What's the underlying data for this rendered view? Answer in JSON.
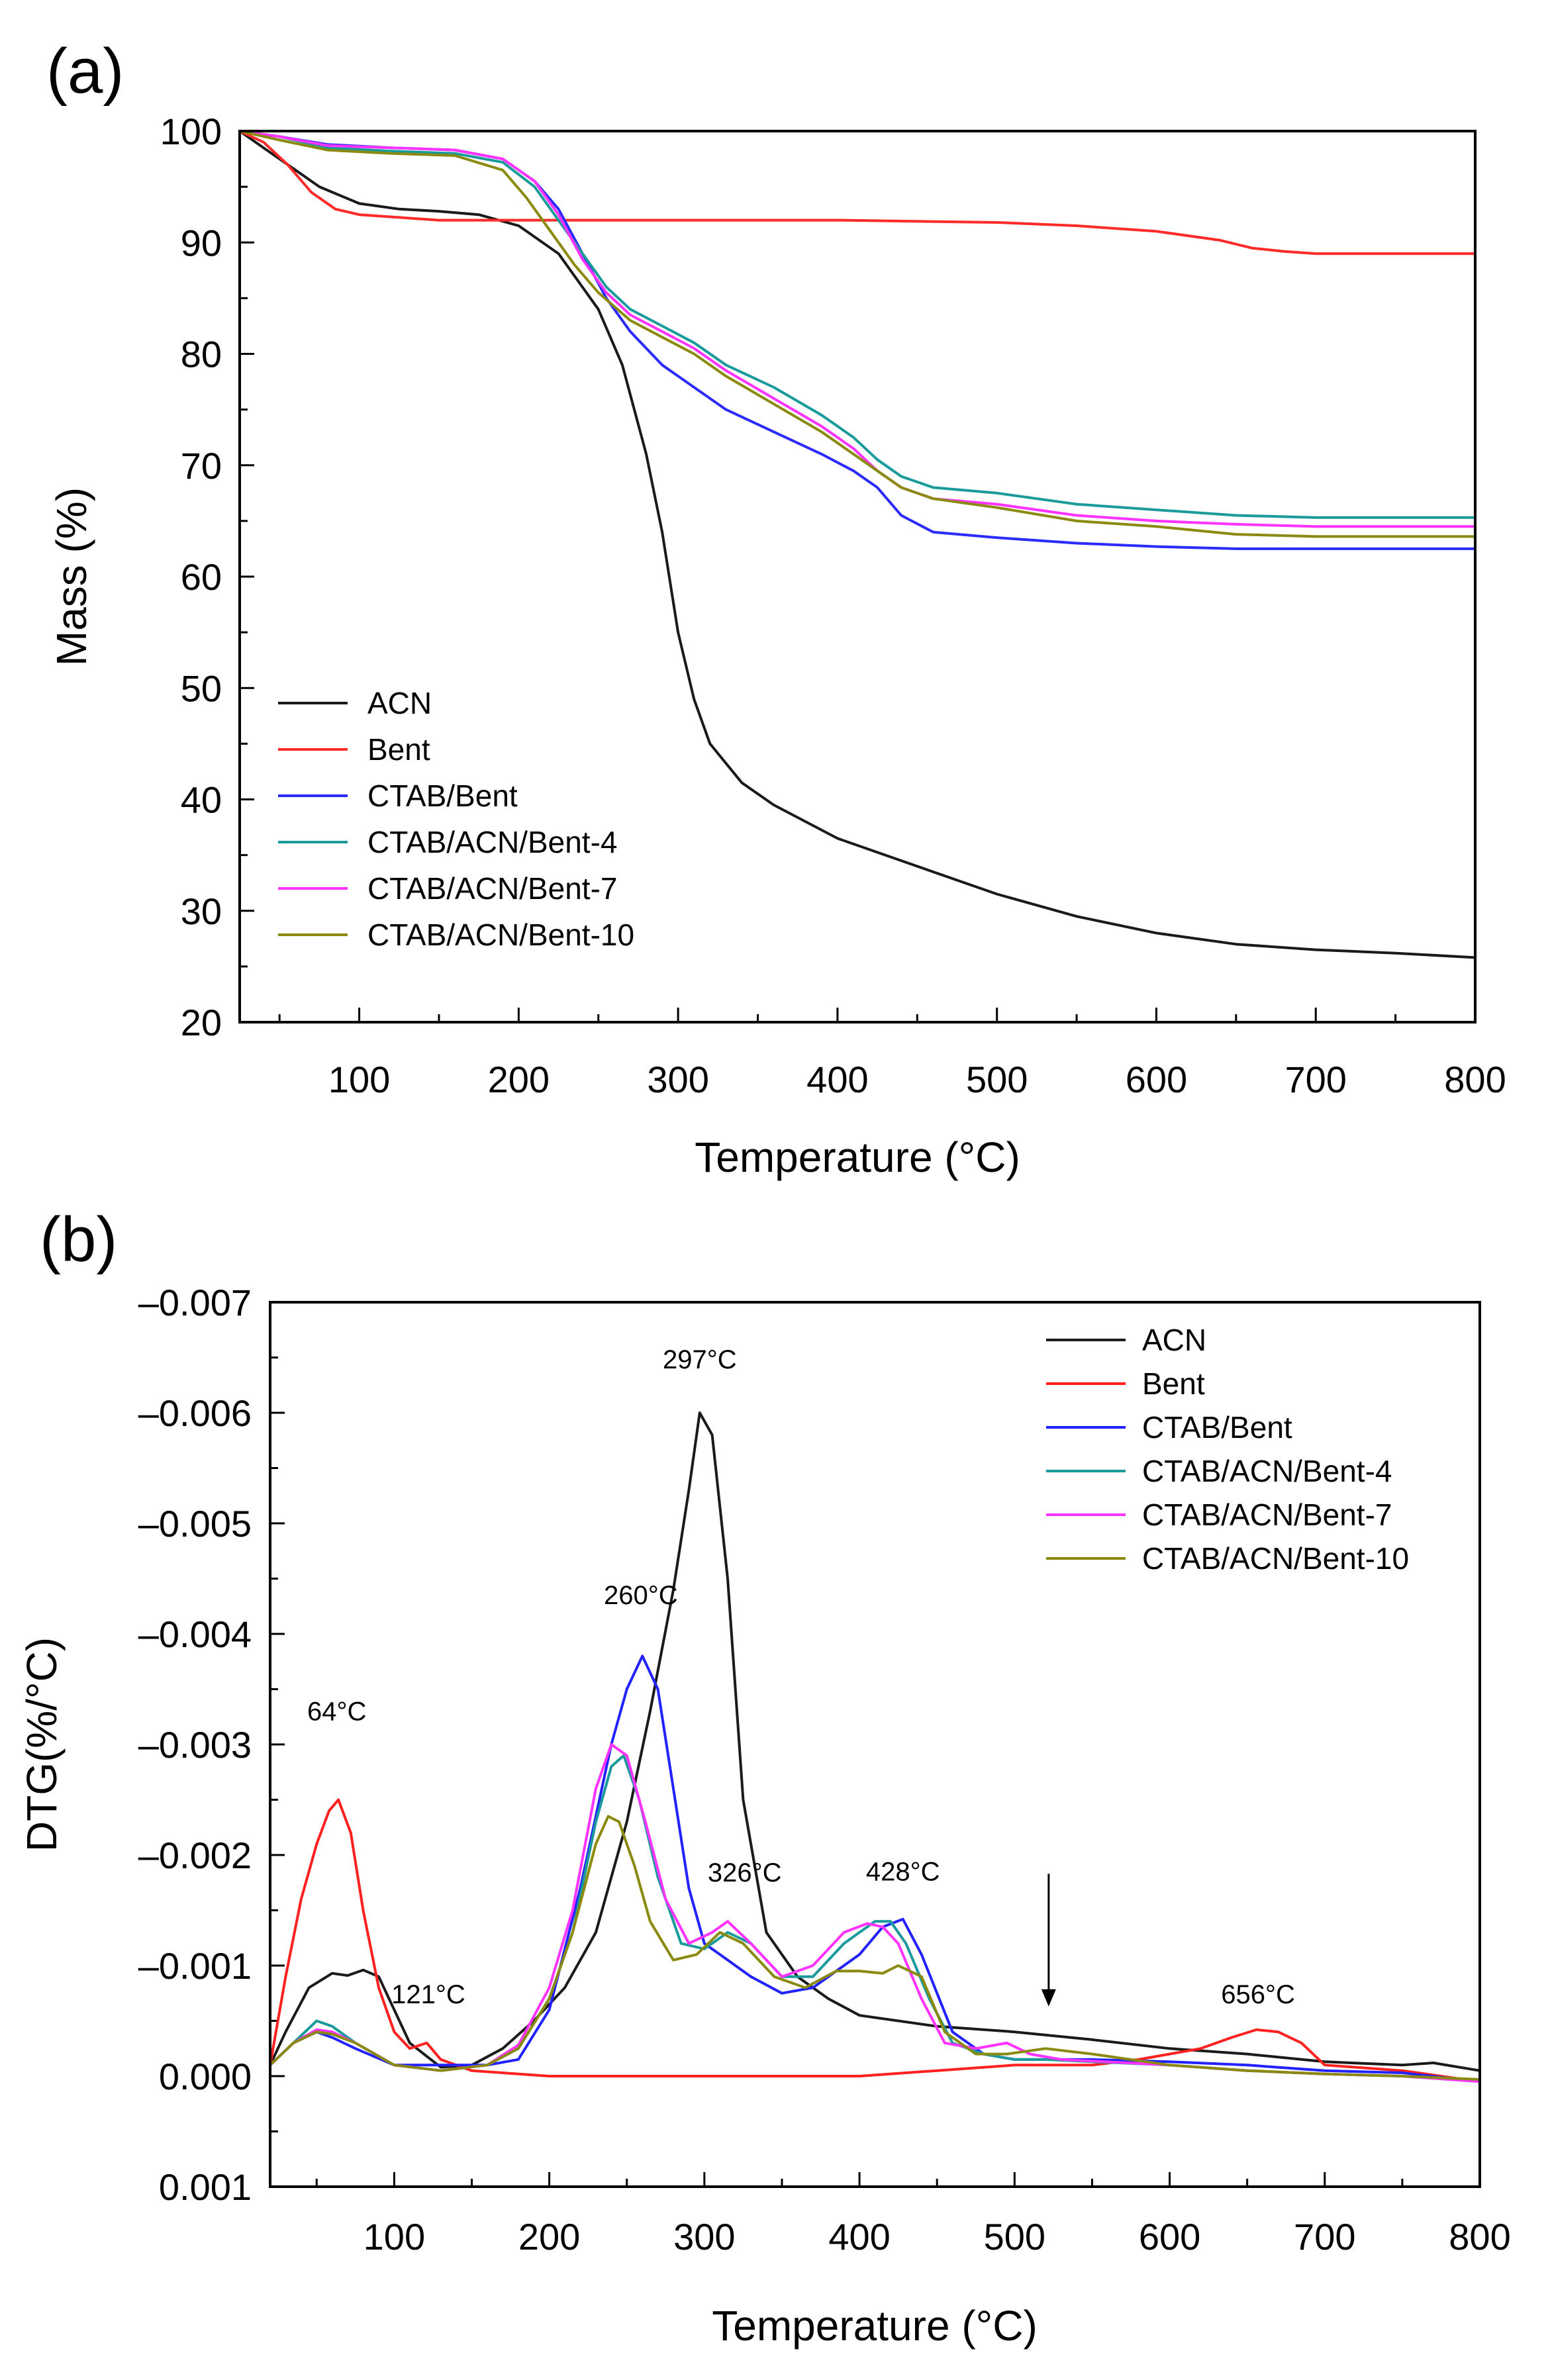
{
  "chart_data": [
    {
      "id": "a",
      "type": "line",
      "panel_label": "(a)",
      "xlabel": "Temperature (°C)",
      "ylabel": "Mass (%)",
      "xlim": [
        25,
        800
      ],
      "ylim": [
        20,
        100
      ],
      "xticks": [
        100,
        200,
        300,
        400,
        500,
        600,
        700,
        800
      ],
      "yticks": [
        20,
        30,
        40,
        50,
        60,
        70,
        80,
        90,
        100
      ],
      "xtick_labels": [
        "100",
        "200",
        "300",
        "400",
        "500",
        "600",
        "700",
        "800"
      ],
      "ytick_labels": [
        "20",
        "30",
        "40",
        "50",
        "60",
        "70",
        "80",
        "90",
        "100"
      ],
      "legend_position": "lower-left",
      "series": [
        {
          "name": "ACN",
          "color": "#1a1a1a",
          "x": [
            25,
            50,
            75,
            100,
            125,
            150,
            175,
            200,
            225,
            250,
            265,
            280,
            290,
            300,
            310,
            320,
            340,
            360,
            400,
            450,
            500,
            550,
            600,
            650,
            700,
            750,
            800
          ],
          "y": [
            100,
            97.5,
            95,
            93.5,
            93,
            92.8,
            92.5,
            91.5,
            89,
            84,
            79,
            71,
            64,
            55,
            49,
            45,
            41.5,
            39.5,
            36.5,
            34,
            31.5,
            29.5,
            28,
            27,
            26.5,
            26.2,
            25.8
          ]
        },
        {
          "name": "Bent",
          "color": "#ff2a2a",
          "x": [
            25,
            40,
            55,
            70,
            85,
            100,
            150,
            200,
            300,
            400,
            500,
            550,
            600,
            640,
            660,
            680,
            700,
            750,
            800
          ],
          "y": [
            100,
            99,
            97,
            94.5,
            93,
            92.5,
            92,
            92,
            92,
            92,
            91.8,
            91.5,
            91,
            90.2,
            89.5,
            89.2,
            89,
            89,
            89
          ]
        },
        {
          "name": "CTAB/Bent",
          "color": "#2b2bff",
          "x": [
            25,
            50,
            80,
            120,
            160,
            190,
            210,
            225,
            240,
            255,
            270,
            290,
            310,
            330,
            360,
            390,
            410,
            425,
            440,
            460,
            500,
            550,
            600,
            650,
            700,
            800
          ],
          "y": [
            100,
            99.5,
            98.8,
            98.5,
            98.3,
            97.5,
            95.5,
            93,
            89,
            85,
            82,
            79,
            77,
            75,
            73,
            71,
            69.5,
            68,
            65.5,
            64,
            63.5,
            63,
            62.7,
            62.5,
            62.5,
            62.5
          ]
        },
        {
          "name": "CTAB/ACN/Bent-4",
          "color": "#1a9a9a",
          "x": [
            25,
            50,
            80,
            120,
            160,
            190,
            210,
            225,
            240,
            255,
            270,
            290,
            310,
            330,
            360,
            390,
            410,
            425,
            440,
            460,
            500,
            550,
            600,
            650,
            700,
            800
          ],
          "y": [
            100,
            99.5,
            98.5,
            98.2,
            98,
            97.2,
            95,
            92,
            89,
            86,
            84,
            82.5,
            81,
            79,
            77,
            74.5,
            72.5,
            70.5,
            69,
            68,
            67.5,
            66.5,
            66,
            65.5,
            65.3,
            65.3
          ]
        },
        {
          "name": "CTAB/ACN/Bent-7",
          "color": "#ff33ff",
          "x": [
            25,
            50,
            80,
            120,
            160,
            190,
            210,
            225,
            240,
            255,
            270,
            290,
            310,
            330,
            360,
            390,
            410,
            425,
            440,
            460,
            500,
            550,
            600,
            650,
            700,
            800
          ],
          "y": [
            100,
            99.5,
            98.7,
            98.5,
            98.3,
            97.5,
            95.5,
            92.5,
            88.5,
            85.5,
            83.5,
            82,
            80.5,
            78.5,
            76,
            73.5,
            71.5,
            69.5,
            68,
            67,
            66.5,
            65.5,
            65,
            64.7,
            64.5,
            64.5
          ]
        },
        {
          "name": "CTAB/ACN/Bent-10",
          "color": "#8a8a10",
          "x": [
            25,
            50,
            80,
            120,
            160,
            190,
            205,
            220,
            235,
            250,
            270,
            290,
            310,
            330,
            360,
            390,
            410,
            425,
            440,
            460,
            500,
            550,
            600,
            650,
            700,
            800
          ],
          "y": [
            100,
            99.2,
            98.3,
            98,
            97.8,
            96.5,
            94,
            91,
            88,
            85.5,
            83,
            81.5,
            80,
            78,
            75.5,
            73,
            71,
            69.5,
            68,
            67,
            66.2,
            65,
            64.5,
            63.8,
            63.6,
            63.6
          ]
        }
      ]
    },
    {
      "id": "b",
      "type": "line",
      "panel_label": "(b)",
      "xlabel": "Temperature (°C)",
      "ylabel": "DTG(%/°C)",
      "xlim": [
        20,
        800
      ],
      "ylim": [
        0.001,
        -0.007
      ],
      "xticks": [
        100,
        200,
        300,
        400,
        500,
        600,
        700,
        800
      ],
      "yticks": [
        -0.007,
        -0.006,
        -0.005,
        -0.004,
        -0.003,
        -0.002,
        -0.001,
        0.0,
        0.001
      ],
      "xtick_labels": [
        "100",
        "200",
        "300",
        "400",
        "500",
        "600",
        "700",
        "800"
      ],
      "ytick_labels": [
        "–0.007",
        "–0.006",
        "–0.005",
        "–0.004",
        "–0.003",
        "–0.002",
        "–0.001",
        "0.000",
        "0.001"
      ],
      "legend_position": "top-right",
      "annotations": [
        {
          "text": "297°C",
          "x": 297,
          "y": -0.0064
        },
        {
          "text": "260°C",
          "x": 259,
          "y": -0.00427
        },
        {
          "text": "64°C",
          "x": 63,
          "y": -0.00322
        },
        {
          "text": "121°C",
          "x": 122,
          "y": -0.00066
        },
        {
          "text": "326°C",
          "x": 326,
          "y": -0.00176
        },
        {
          "text": "428°C",
          "x": 428,
          "y": -0.00177
        },
        {
          "text": "656°C",
          "x": 657,
          "y": -0.00066
        }
      ],
      "arrow": {
        "x": 522,
        "y_from": -0.00183,
        "y_to": -0.00063
      },
      "series": [
        {
          "name": "ACN",
          "color": "#1a1a1a",
          "x": [
            20,
            30,
            45,
            60,
            70,
            80,
            90,
            100,
            110,
            130,
            150,
            170,
            190,
            210,
            230,
            250,
            265,
            280,
            290,
            297,
            305,
            315,
            325,
            340,
            360,
            380,
            400,
            450,
            500,
            550,
            600,
            650,
            700,
            750,
            770,
            800
          ],
          "y": [
            -0.0001,
            -0.0004,
            -0.0008,
            -0.00093,
            -0.00091,
            -0.00096,
            -0.0009,
            -0.0006,
            -0.0003,
            -8e-05,
            -0.0001,
            -0.00025,
            -0.0005,
            -0.0008,
            -0.0013,
            -0.0023,
            -0.0033,
            -0.0044,
            -0.0053,
            -0.006,
            -0.0058,
            -0.0045,
            -0.0025,
            -0.0013,
            -0.0009,
            -0.0007,
            -0.00055,
            -0.00045,
            -0.0004,
            -0.00033,
            -0.00025,
            -0.0002,
            -0.00013,
            -0.0001,
            -0.00012,
            -5e-05
          ]
        },
        {
          "name": "Bent",
          "color": "#ff2020",
          "x": [
            20,
            30,
            40,
            50,
            58,
            64,
            72,
            80,
            90,
            100,
            110,
            121,
            130,
            150,
            200,
            300,
            400,
            450,
            500,
            550,
            580,
            600,
            620,
            640,
            656,
            670,
            685,
            700,
            750,
            800
          ],
          "y": [
            -0.0001,
            -0.0009,
            -0.0016,
            -0.0021,
            -0.0024,
            -0.0025,
            -0.0022,
            -0.0015,
            -0.0008,
            -0.0004,
            -0.00025,
            -0.0003,
            -0.00015,
            -5e-05,
            0.0,
            0.0,
            0.0,
            -5e-05,
            -0.0001,
            -0.0001,
            -0.00015,
            -0.0002,
            -0.00025,
            -0.00035,
            -0.00042,
            -0.0004,
            -0.0003,
            -0.0001,
            -5e-05,
            5e-05
          ]
        },
        {
          "name": "CTAB/Bent",
          "color": "#2222ff",
          "x": [
            20,
            35,
            50,
            60,
            75,
            100,
            130,
            160,
            180,
            200,
            220,
            240,
            250,
            260,
            270,
            280,
            290,
            300,
            310,
            330,
            350,
            370,
            400,
            415,
            428,
            440,
            460,
            480,
            500,
            520,
            550,
            600,
            650,
            700,
            750,
            800
          ],
          "y": [
            -0.0001,
            -0.0003,
            -0.0004,
            -0.00035,
            -0.00025,
            -0.0001,
            -0.0001,
            -0.0001,
            -0.00015,
            -0.0006,
            -0.0017,
            -0.003,
            -0.0035,
            -0.0038,
            -0.0035,
            -0.0026,
            -0.0017,
            -0.0012,
            -0.0011,
            -0.0009,
            -0.00075,
            -0.0008,
            -0.0011,
            -0.00135,
            -0.00142,
            -0.0011,
            -0.0004,
            -0.0002,
            -0.00015,
            -0.00015,
            -0.00015,
            -0.00013,
            -0.0001,
            -5e-05,
            -3e-05,
            5e-05
          ]
        },
        {
          "name": "CTAB/ACN/Bent-4",
          "color": "#1a9a9a",
          "x": [
            20,
            35,
            50,
            60,
            75,
            100,
            130,
            160,
            180,
            200,
            215,
            230,
            240,
            248,
            258,
            270,
            285,
            300,
            315,
            330,
            350,
            370,
            390,
            410,
            420,
            430,
            445,
            460,
            480,
            500,
            520,
            550,
            600,
            650,
            700,
            750,
            800
          ],
          "y": [
            -0.0001,
            -0.0003,
            -0.0005,
            -0.00045,
            -0.0003,
            -0.0001,
            -5e-05,
            -0.0001,
            -0.00025,
            -0.0007,
            -0.0013,
            -0.0023,
            -0.0028,
            -0.0029,
            -0.0025,
            -0.0018,
            -0.0012,
            -0.00115,
            -0.0013,
            -0.0012,
            -0.0009,
            -0.0009,
            -0.0012,
            -0.0014,
            -0.0014,
            -0.0012,
            -0.0007,
            -0.0003,
            -0.0002,
            -0.00015,
            -0.00015,
            -0.00013,
            -0.0001,
            -5e-05,
            -2e-05,
            0.0,
            5e-05
          ]
        },
        {
          "name": "CTAB/ACN/Bent-7",
          "color": "#ff33ff",
          "x": [
            20,
            35,
            50,
            60,
            75,
            100,
            130,
            160,
            180,
            200,
            215,
            230,
            240,
            250,
            262,
            275,
            290,
            305,
            315,
            330,
            350,
            370,
            390,
            405,
            415,
            425,
            440,
            455,
            475,
            495,
            510,
            530,
            600,
            650,
            700,
            750,
            800
          ],
          "y": [
            -0.0001,
            -0.0003,
            -0.00042,
            -0.0004,
            -0.0003,
            -0.0001,
            -5e-05,
            -0.0001,
            -0.00028,
            -0.0008,
            -0.0015,
            -0.0026,
            -0.003,
            -0.0029,
            -0.0023,
            -0.0016,
            -0.0012,
            -0.0013,
            -0.0014,
            -0.0012,
            -0.0009,
            -0.001,
            -0.0013,
            -0.00138,
            -0.00135,
            -0.0012,
            -0.0007,
            -0.0003,
            -0.00025,
            -0.0003,
            -0.0002,
            -0.00015,
            -0.0001,
            -5e-05,
            -2e-05,
            0.0,
            5e-05
          ]
        },
        {
          "name": "CTAB/ACN/Bent-10",
          "color": "#8a8a10",
          "x": [
            20,
            35,
            50,
            60,
            75,
            100,
            130,
            160,
            180,
            200,
            215,
            230,
            238,
            245,
            255,
            265,
            280,
            295,
            310,
            325,
            345,
            365,
            385,
            400,
            415,
            425,
            440,
            455,
            475,
            495,
            520,
            550,
            600,
            650,
            700,
            750,
            800
          ],
          "y": [
            -0.0001,
            -0.0003,
            -0.0004,
            -0.00038,
            -0.0003,
            -0.0001,
            -5e-05,
            -0.0001,
            -0.00025,
            -0.0007,
            -0.0013,
            -0.0021,
            -0.00235,
            -0.0023,
            -0.0019,
            -0.0014,
            -0.00105,
            -0.0011,
            -0.0013,
            -0.0012,
            -0.0009,
            -0.0008,
            -0.00095,
            -0.00095,
            -0.00093,
            -0.001,
            -0.0009,
            -0.0004,
            -0.0002,
            -0.0002,
            -0.00025,
            -0.0002,
            -0.0001,
            -5e-05,
            -2e-05,
            0.0,
            3e-05
          ]
        }
      ]
    }
  ]
}
